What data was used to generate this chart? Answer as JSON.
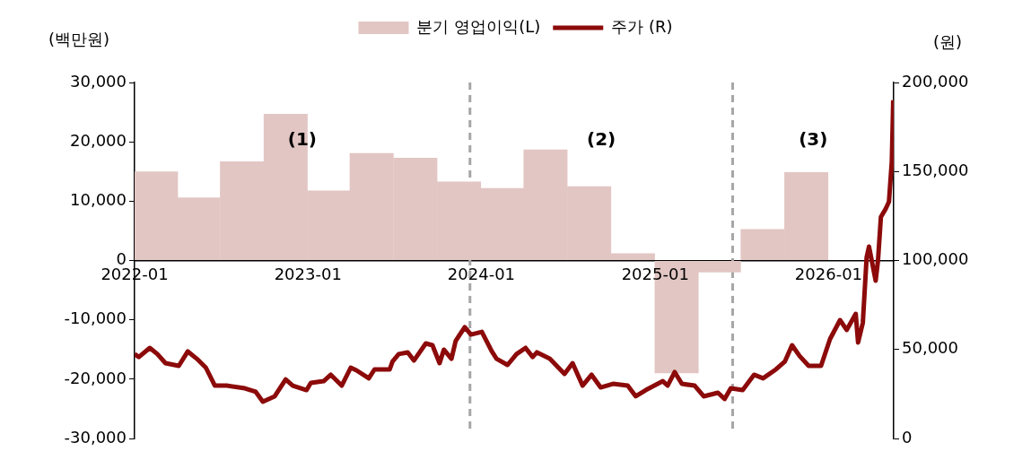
{
  "chart_data": {
    "type": "bar",
    "ylabel": "(백만원)",
    "y2label": "(원)",
    "xlim": [
      "2022-01-01",
      "2026-05-18"
    ],
    "xticks": [
      "2022-01",
      "2023-01",
      "2024-01",
      "2025-01",
      "2026-01"
    ],
    "ylim": [
      -30000,
      30000
    ],
    "yticks": [
      {
        "value": -30000,
        "label": "-30,000"
      },
      {
        "value": -20000,
        "label": "-20,000"
      },
      {
        "value": -10000,
        "label": "-10,000"
      },
      0,
      {
        "value": 10000,
        "label": "10,000"
      },
      {
        "value": 20000,
        "label": "20,000"
      },
      {
        "value": 30000,
        "label": "30,000"
      }
    ],
    "y2lim": [
      0,
      200000
    ],
    "y2ticks": [
      0,
      {
        "value": 50000,
        "label": "50,000"
      },
      {
        "value": 100000,
        "label": "100,000"
      },
      {
        "value": 150000,
        "label": "150,000"
      },
      {
        "value": 200000,
        "label": "200,000"
      }
    ],
    "legend": "top",
    "grid": false,
    "series": [
      {
        "name": "분기 영업이익(L)",
        "color": "#e2c6c3",
        "x": [
          "2022-02-15",
          "2022-05-15",
          "2022-08-15",
          "2022-11-15",
          "2023-02-15",
          "2023-05-15",
          "2023-08-15",
          "2023-11-15",
          "2024-02-15",
          "2024-05-15",
          "2024-08-15",
          "2024-11-15",
          "2025-02-15",
          "2025-05-15",
          "2025-08-15",
          "2025-11-15"
        ],
        "values": [
          15000,
          10600,
          16700,
          24700,
          11800,
          18100,
          17300,
          13300,
          12200,
          18700,
          12500,
          1200,
          -19000,
          -2000,
          5300,
          14900
        ]
      },
      {
        "name": "주가 (R)",
        "type": "line",
        "axis": "y2",
        "color": "#8c0a0a",
        "x": [
          "2022-01-01",
          "2022-01-10",
          "2022-02-02",
          "2022-02-18",
          "2022-03-07",
          "2022-04-04",
          "2022-04-23",
          "2022-05-12",
          "2022-05-31",
          "2022-06-19",
          "2022-07-14",
          "2022-08-21",
          "2022-09-13",
          "2022-09-28",
          "2022-10-23",
          "2022-11-15",
          "2022-11-30",
          "2022-12-29",
          "2023-01-07",
          "2023-02-03",
          "2023-02-18",
          "2023-03-13",
          "2023-04-01",
          "2023-04-13",
          "2023-05-09",
          "2023-05-21",
          "2023-06-22",
          "2023-06-28",
          "2023-07-11",
          "2023-07-30",
          "2023-08-12",
          "2023-09-06",
          "2023-09-20",
          "2023-10-05",
          "2023-10-14",
          "2023-10-30",
          "2023-11-08",
          "2023-11-27",
          "2023-12-10",
          "2024-01-02",
          "2024-01-23",
          "2024-02-02",
          "2024-02-25",
          "2024-03-15",
          "2024-04-03",
          "2024-04-18",
          "2024-04-27",
          "2024-05-24",
          "2024-06-24",
          "2024-07-11",
          "2024-08-01",
          "2024-08-20",
          "2024-09-08",
          "2024-10-04",
          "2024-11-04",
          "2024-11-21",
          "2024-12-12",
          "2025-01-17",
          "2025-01-27",
          "2025-02-11",
          "2025-02-26",
          "2025-03-25",
          "2025-04-13",
          "2025-05-13",
          "2025-05-27",
          "2025-06-09",
          "2025-07-04",
          "2025-07-28",
          "2025-08-16",
          "2025-09-12",
          "2025-10-01",
          "2025-10-16",
          "2025-11-01",
          "2025-11-20",
          "2025-12-16",
          "2026-01-04",
          "2026-01-25",
          "2026-02-08",
          "2026-02-27",
          "2026-03-04",
          "2026-03-14",
          "2026-03-22",
          "2026-03-27",
          "2026-04-10",
          "2026-04-15",
          "2026-04-21",
          "2026-05-01",
          "2026-05-08",
          "2026-05-14",
          "2026-05-17"
        ],
        "values": [
          47400,
          45800,
          50900,
          47400,
          42300,
          40800,
          48900,
          44800,
          39800,
          29700,
          29700,
          28200,
          26200,
          20700,
          23700,
          33200,
          29700,
          27200,
          31200,
          32200,
          35800,
          29700,
          39800,
          38300,
          33800,
          38800,
          38800,
          43300,
          47400,
          48400,
          43800,
          53400,
          52400,
          42300,
          49900,
          44800,
          54900,
          62500,
          58400,
          59900,
          48900,
          44800,
          41300,
          47400,
          50900,
          45800,
          48400,
          44800,
          36300,
          42300,
          29700,
          35800,
          28700,
          30700,
          29700,
          23700,
          27200,
          32200,
          29700,
          37300,
          30700,
          29700,
          23700,
          25700,
          22200,
          28200,
          27200,
          35800,
          33800,
          38800,
          43300,
          52400,
          46300,
          40800,
          40800,
          55900,
          66500,
          61000,
          70000,
          53900,
          65000,
          101800,
          107800,
          88700,
          100200,
          124400,
          129000,
          133000,
          155700,
          190000
        ]
      }
    ],
    "ref_lines": [
      {
        "axis": "x",
        "value": "2023-12-08",
        "color": "#a6a6a6",
        "line_style": "dashed"
      },
      {
        "axis": "x",
        "value": "2025-06-13",
        "color": "#a6a6a6",
        "line_style": "dashed"
      }
    ],
    "annotations": [
      "(1)",
      "(2)",
      "(3)"
    ]
  }
}
